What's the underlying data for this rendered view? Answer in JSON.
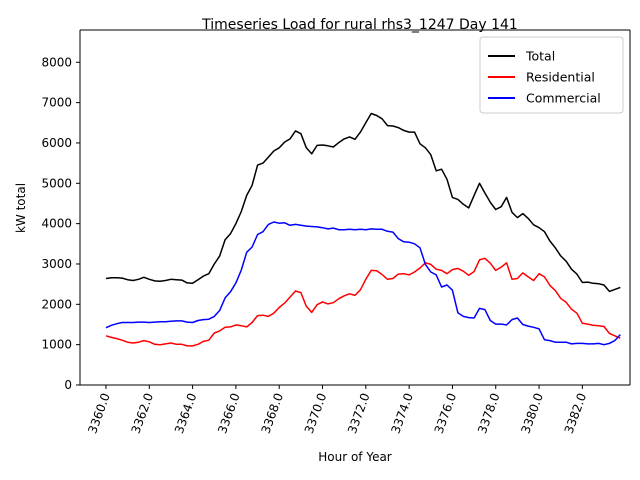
{
  "chart_data": {
    "type": "line",
    "title": "Timeseries Load for rural rhs3_1247  Day 141",
    "xlabel": "Hour of Year",
    "ylabel": "kW total",
    "xlim": [
      3358.8,
      3384.2
    ],
    "ylim": [
      0,
      8800
    ],
    "x_ticks": [
      "3360.0",
      "3362.0",
      "3364.0",
      "3366.0",
      "3368.0",
      "3370.0",
      "3372.0",
      "3374.0",
      "3376.0",
      "3378.0",
      "3380.0",
      "3382.0"
    ],
    "x_tick_values": [
      3360,
      3362,
      3364,
      3366,
      3368,
      3370,
      3372,
      3374,
      3376,
      3378,
      3380,
      3382
    ],
    "y_ticks": [
      "0",
      "1000",
      "2000",
      "3000",
      "4000",
      "5000",
      "6000",
      "7000",
      "8000"
    ],
    "y_tick_values": [
      0,
      1000,
      2000,
      3000,
      4000,
      5000,
      6000,
      7000,
      8000
    ],
    "legend_position": "top-right",
    "x_start": 3360.0,
    "x_step": 0.25,
    "series": [
      {
        "name": "Total",
        "color": "#000000",
        "values": [
          2640,
          2660,
          2660,
          2650,
          2610,
          2590,
          2620,
          2670,
          2620,
          2580,
          2570,
          2590,
          2620,
          2610,
          2600,
          2530,
          2520,
          2610,
          2700,
          2760,
          3000,
          3200,
          3600,
          3750,
          4000,
          4300,
          4700,
          4950,
          5450,
          5500,
          5650,
          5800,
          5880,
          6020,
          6100,
          6300,
          6230,
          5880,
          5730,
          5940,
          5950,
          5930,
          5900,
          6010,
          6100,
          6150,
          6090,
          6270,
          6500,
          6730,
          6680,
          6600,
          6430,
          6420,
          6380,
          6310,
          6270,
          6270,
          5980,
          5880,
          5710,
          5310,
          5350,
          5100,
          4650,
          4600,
          4480,
          4390,
          4700,
          5000,
          4760,
          4530,
          4350,
          4420,
          4650,
          4280,
          4150,
          4250,
          4130,
          3970,
          3900,
          3800,
          3570,
          3400,
          3200,
          3070,
          2870,
          2750,
          2540,
          2550,
          2520,
          2510,
          2480,
          2320,
          2370,
          2420
        ]
      },
      {
        "name": "Residential",
        "color": "#ff0000",
        "values": [
          1220,
          1180,
          1150,
          1110,
          1060,
          1040,
          1060,
          1100,
          1070,
          1010,
          1000,
          1020,
          1040,
          1010,
          1010,
          970,
          970,
          1010,
          1080,
          1110,
          1290,
          1340,
          1430,
          1440,
          1490,
          1470,
          1440,
          1550,
          1720,
          1730,
          1700,
          1780,
          1920,
          2030,
          2180,
          2330,
          2290,
          1950,
          1800,
          1990,
          2060,
          2010,
          2040,
          2140,
          2210,
          2260,
          2220,
          2360,
          2620,
          2840,
          2830,
          2740,
          2620,
          2640,
          2750,
          2760,
          2730,
          2800,
          2900,
          3030,
          2990,
          2870,
          2840,
          2760,
          2860,
          2890,
          2820,
          2720,
          2810,
          3100,
          3140,
          3020,
          2840,
          2920,
          3030,
          2620,
          2640,
          2780,
          2680,
          2590,
          2760,
          2680,
          2470,
          2340,
          2150,
          2050,
          1880,
          1780,
          1530,
          1510,
          1480,
          1470,
          1450,
          1280,
          1220,
          1160
        ]
      },
      {
        "name": "Commercial",
        "color": "#0000ff",
        "values": [
          1420,
          1480,
          1520,
          1550,
          1550,
          1550,
          1560,
          1560,
          1550,
          1560,
          1570,
          1570,
          1580,
          1590,
          1590,
          1560,
          1550,
          1600,
          1620,
          1630,
          1700,
          1850,
          2160,
          2310,
          2530,
          2850,
          3290,
          3420,
          3730,
          3800,
          3980,
          4040,
          4010,
          4020,
          3960,
          3980,
          3960,
          3940,
          3930,
          3920,
          3900,
          3870,
          3890,
          3850,
          3850,
          3860,
          3850,
          3860,
          3850,
          3870,
          3860,
          3860,
          3810,
          3790,
          3630,
          3550,
          3540,
          3500,
          3400,
          2990,
          2800,
          2730,
          2430,
          2480,
          2350,
          1790,
          1700,
          1670,
          1660,
          1900,
          1870,
          1600,
          1510,
          1510,
          1490,
          1620,
          1660,
          1500,
          1460,
          1430,
          1390,
          1120,
          1100,
          1060,
          1060,
          1060,
          1020,
          1030,
          1030,
          1020,
          1020,
          1030,
          1000,
          1030,
          1100,
          1250
        ]
      }
    ]
  }
}
